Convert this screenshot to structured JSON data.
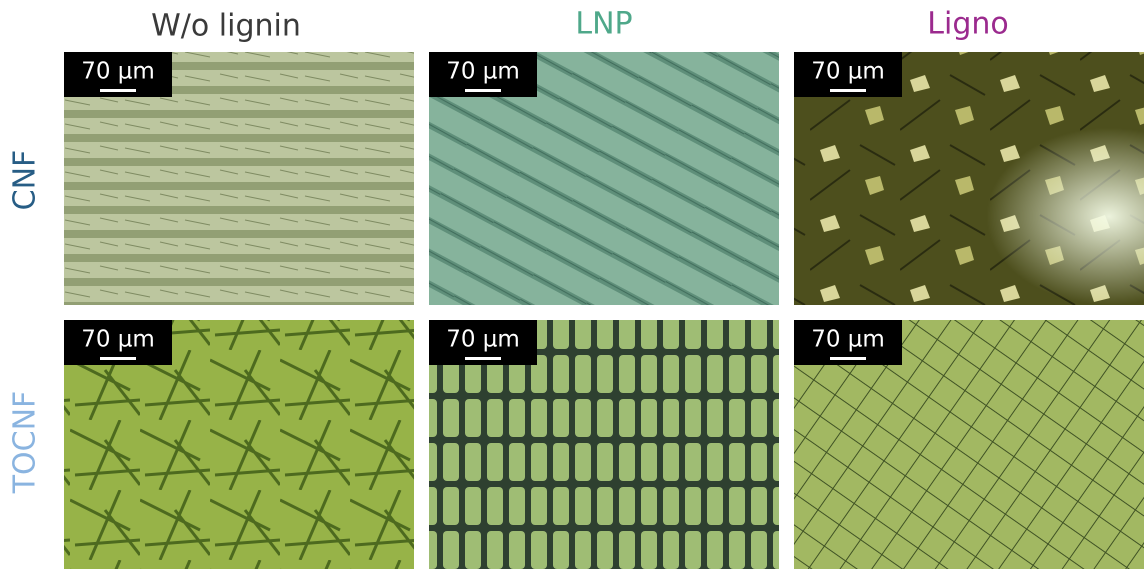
{
  "columns": [
    "W/o lignin",
    "LNP",
    "Ligno"
  ],
  "rows": [
    "CNF",
    "TOCNF"
  ],
  "panels": [
    {
      "scale": "70 µm"
    },
    {
      "scale": "70 µm"
    },
    {
      "scale": "70 µm"
    },
    {
      "scale": "70 µm"
    },
    {
      "scale": "70 µm"
    },
    {
      "scale": "70 µm"
    }
  ]
}
